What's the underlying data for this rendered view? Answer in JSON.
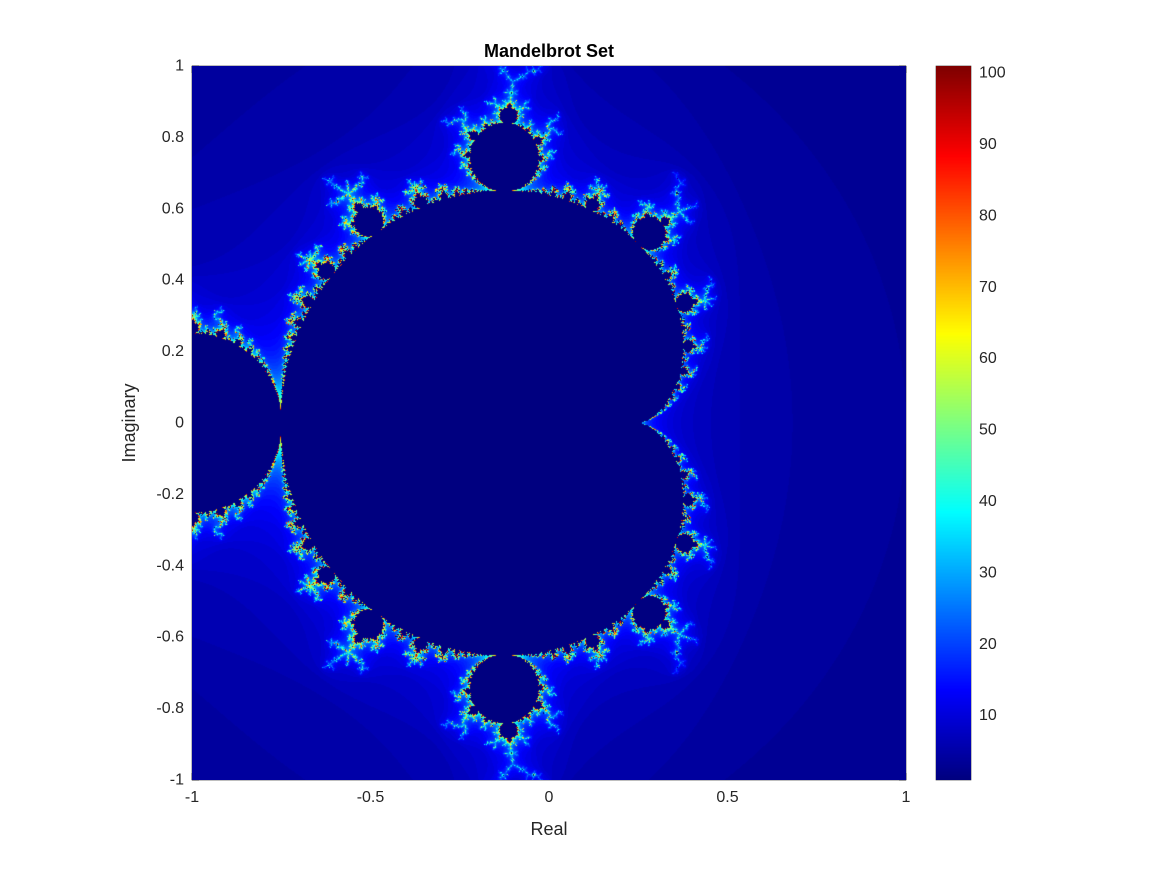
{
  "chart_data": {
    "type": "heatmap",
    "title": "Mandelbrot Set",
    "xlabel": "Real",
    "ylabel": "Imaginary",
    "xlim": [
      -1,
      1
    ],
    "ylim": [
      -1,
      1
    ],
    "x_ticks": [
      -1,
      -0.5,
      0,
      0.5,
      1
    ],
    "x_tick_labels": [
      "-1",
      "-0.5",
      "0",
      "0.5",
      "1"
    ],
    "y_ticks": [
      1,
      0.8,
      0.6,
      0.4,
      0.2,
      0,
      -0.2,
      -0.4,
      -0.6,
      -0.8,
      -1
    ],
    "y_tick_labels": [
      "1",
      "0.8",
      "0.6",
      "0.4",
      "0.2",
      "0",
      "-0.2",
      "-0.4",
      "-0.6",
      "-0.8",
      "-1"
    ],
    "max_iterations": 100,
    "colormap": "jet",
    "colorbar": {
      "min": 1,
      "max": 101,
      "ticks": [
        10,
        20,
        30,
        40,
        50,
        60,
        70,
        80,
        90,
        100
      ],
      "tick_labels": [
        "10",
        "20",
        "30",
        "40",
        "50",
        "60",
        "70",
        "80",
        "90",
        "100"
      ]
    },
    "grid": false
  }
}
